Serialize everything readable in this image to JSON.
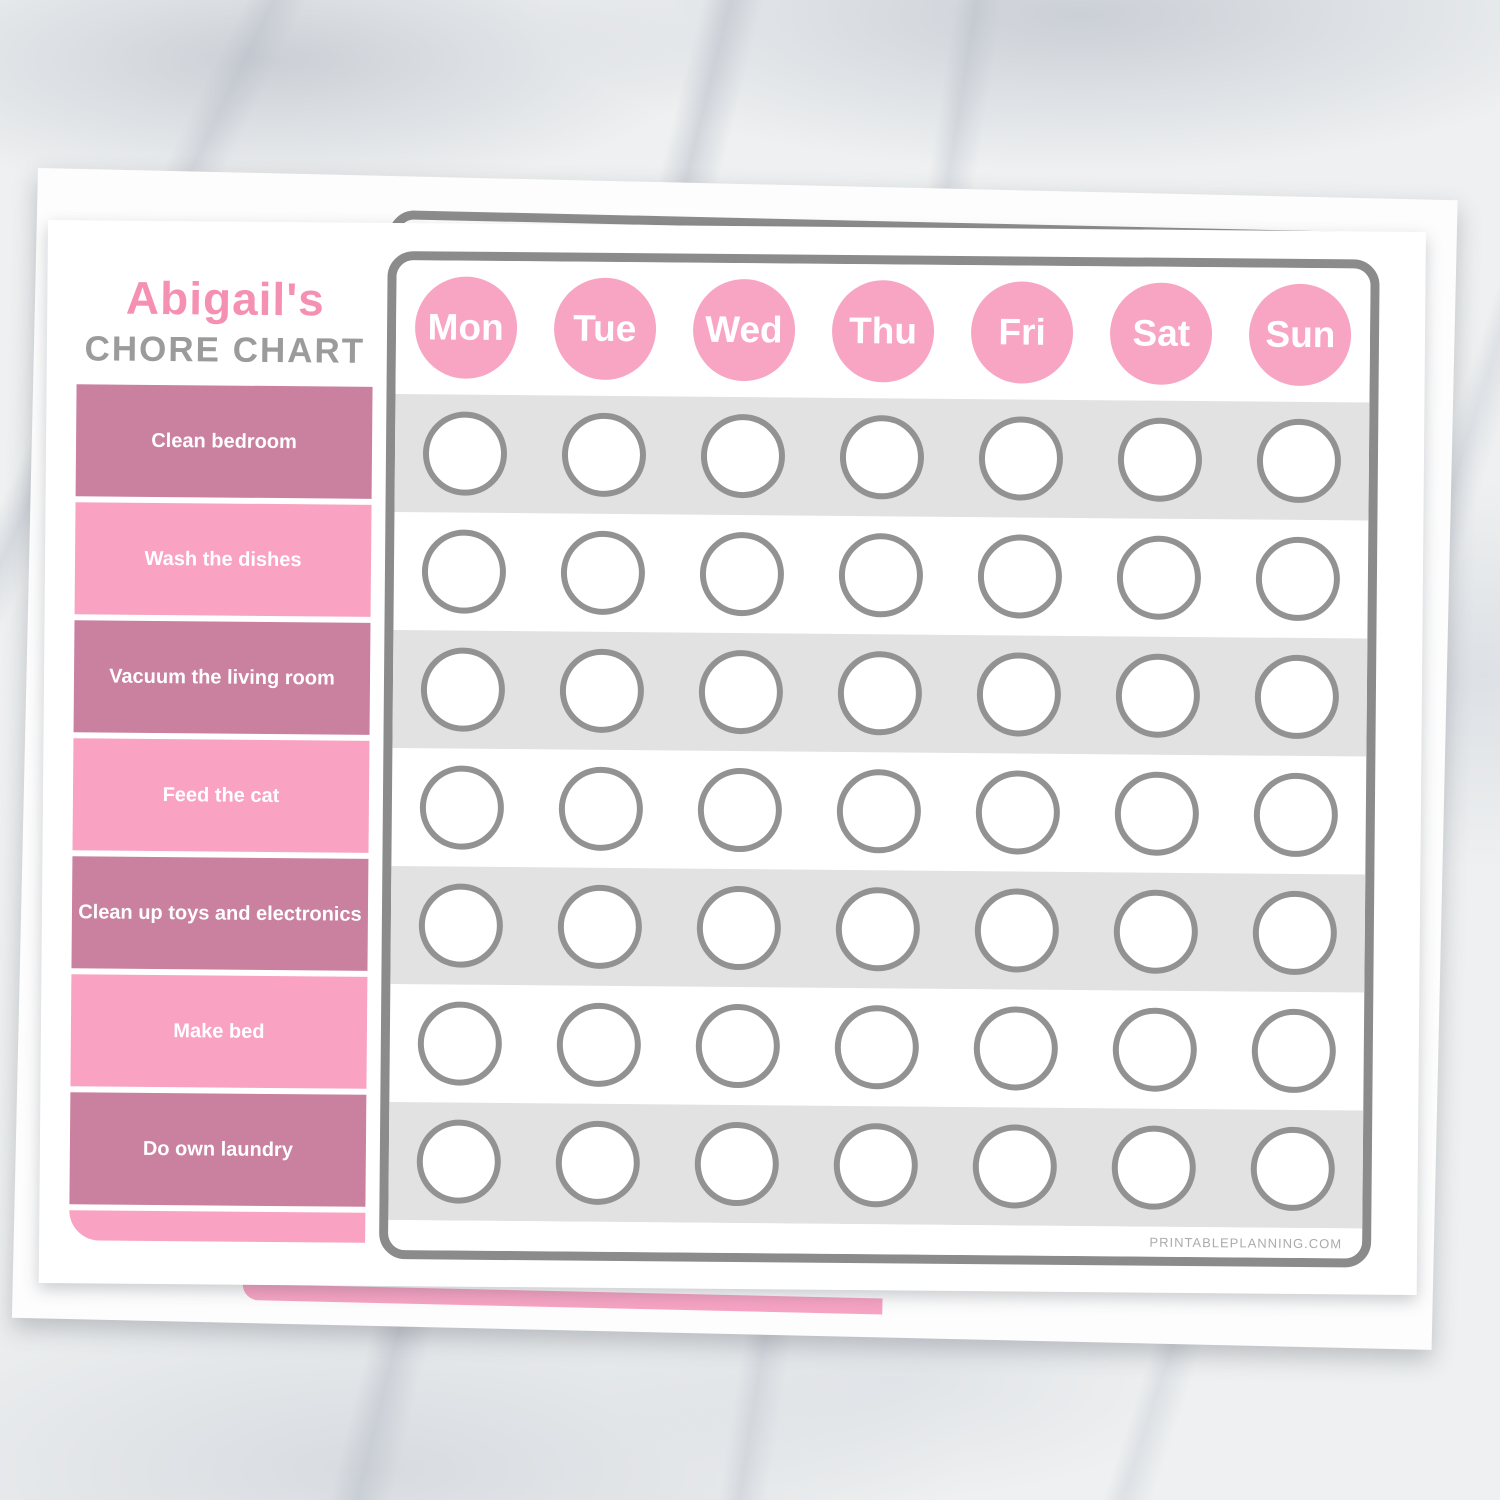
{
  "page": {
    "title_name": "Abigail's",
    "subtitle": "CHORE CHART",
    "chores": [
      "Clean bedroom",
      "Wash the dishes",
      "Vacuum the living room",
      "Feed the cat",
      "Clean up toys and electronics",
      "Make bed",
      "Do own laundry"
    ],
    "days": [
      "Mon",
      "Tue",
      "Wed",
      "Thu",
      "Fri",
      "Sat",
      "Sun"
    ],
    "footer_credit": "PRINTABLEPLANNING.COM",
    "colors": {
      "title_pink": "#f690b3",
      "subtitle_gray": "#9b9b9b",
      "chore_dark_pink": "#ca809f",
      "chore_light_pink": "#f9a2c2",
      "day_circle_pink": "#f8a5c4",
      "grid_border_gray": "#8b8b8b",
      "row_alt_gray": "#e2e2e3",
      "check_circle_border": "#929292",
      "credit_gray": "#ababab"
    }
  },
  "chart_data": {
    "type": "table",
    "title": "Abigail's Chore Chart",
    "columns": [
      "Mon",
      "Tue",
      "Wed",
      "Thu",
      "Fri",
      "Sat",
      "Sun"
    ],
    "rows": [
      "Clean bedroom",
      "Wash the dishes",
      "Vacuum the living room",
      "Feed the cat",
      "Clean up toys and electronics",
      "Make bed",
      "Do own laundry"
    ],
    "cell_state": "empty unchecked circle in every row-day cell (7x7)",
    "checked_cells": []
  }
}
